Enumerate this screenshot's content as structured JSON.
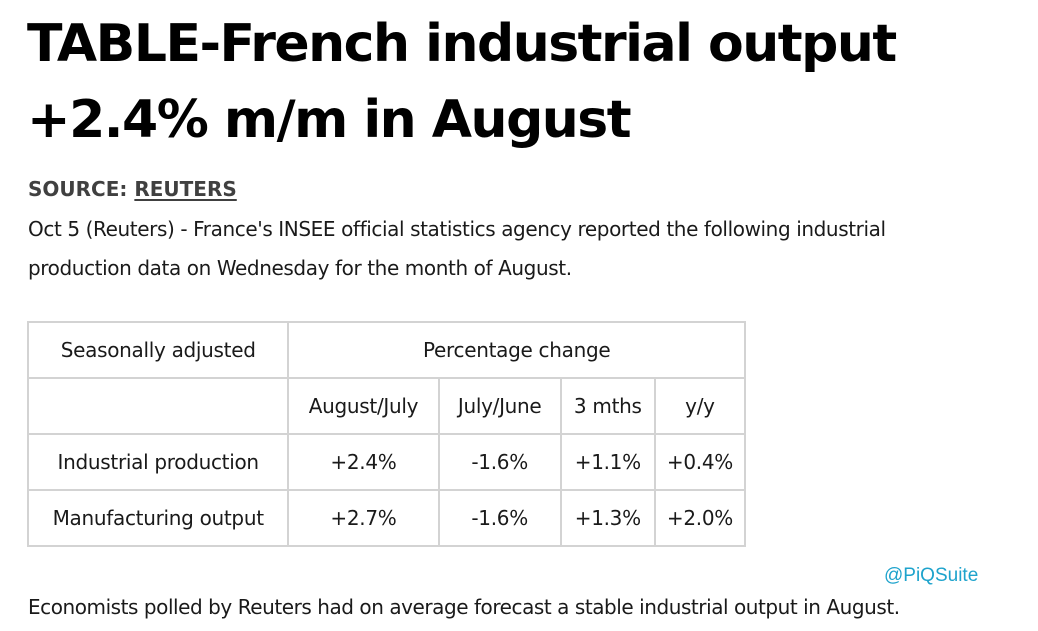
{
  "article": {
    "headline_line1": "TABLE-French industrial output",
    "headline_line2": "+2.4% m/m in August",
    "source_label": "SOURCE:",
    "source_name": "REUTERS",
    "lead_line1": "Oct 5 (Reuters) - France's INSEE official statistics agency reported the following industrial",
    "lead_line2": "production data on Wednesday for the month of August.",
    "footer": "Economists polled by Reuters had on average forecast a stable industrial output in August.",
    "watermark": "@PiQSuite"
  },
  "table": {
    "corner_header": "Seasonally adjusted",
    "group_header": "Percentage change",
    "columns": [
      "August/July",
      "July/June",
      "3 mths",
      "y/y"
    ],
    "rows": [
      {
        "label": "Industrial production",
        "values": [
          "+2.4%",
          "-1.6%",
          "+1.1%",
          "+0.4%"
        ]
      },
      {
        "label": "Manufacturing output",
        "values": [
          "+2.7%",
          "-1.6%",
          "+1.3%",
          "+2.0%"
        ]
      }
    ]
  },
  "colors": {
    "text": "#1a1a1a",
    "source": "#404040",
    "table_border": "#d3d3d3",
    "watermark": "#1ea3cc"
  }
}
